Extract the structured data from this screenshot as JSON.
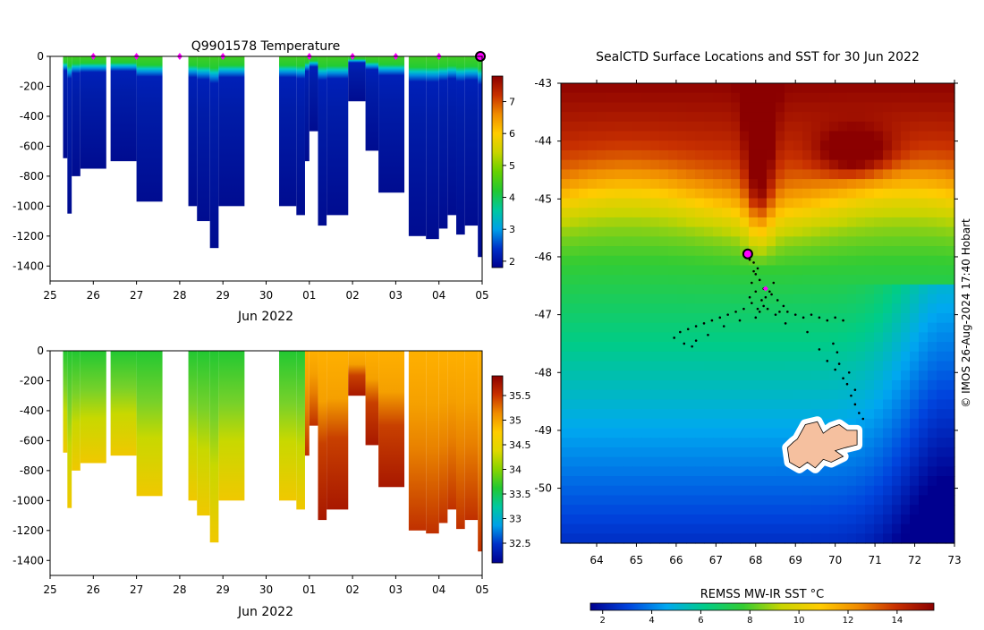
{
  "colors": {
    "temp_scale": [
      "#00008f",
      "#0033cc",
      "#00a8e8",
      "#00d060",
      "#33cc33",
      "#66d100"
    ],
    "sal_scale": [
      "#33cc33",
      "#7fd82a",
      "#d9e000",
      "#ffcc00",
      "#f5a300",
      "#d96b00",
      "#a81800"
    ],
    "sst_scale": [
      "#00008f",
      "#0044dd",
      "#00a8f0",
      "#00cc88",
      "#33cc33",
      "#c8d400",
      "#ffcc00",
      "#f08c00",
      "#c83000",
      "#8b0000"
    ],
    "marker": "#ff00ff",
    "track": "#000000",
    "land_fill": "#f5c09f"
  },
  "chart_data": [
    {
      "type": "heatmap",
      "title": "Q9901578  Temperature",
      "xlabel": "Jun 2022",
      "ylabel": "",
      "x_tick_labels": [
        "25",
        "26",
        "27",
        "28",
        "29",
        "30",
        "01",
        "02",
        "03",
        "04",
        "05"
      ],
      "y_tick_labels": [
        "0",
        "-200",
        "-400",
        "-600",
        "-800",
        "-1000",
        "-1200",
        "-1400"
      ],
      "xlim": [
        25,
        35
      ],
      "ylim": [
        -1500,
        0
      ],
      "marker_days": [
        26,
        27,
        28,
        29,
        31,
        32,
        33,
        34,
        35
      ],
      "colorbar": {
        "range": [
          1.8,
          7.8
        ],
        "tick_labels": [
          "2",
          "3",
          "4",
          "5",
          "6",
          "7"
        ],
        "tick_values": [
          2,
          3,
          4,
          5,
          6,
          7
        ]
      },
      "profiles": [
        {
          "start": 25.3,
          "end": 25.4,
          "max_depth": -680
        },
        {
          "start": 25.4,
          "end": 25.5,
          "max_depth": -1050
        },
        {
          "start": 25.5,
          "end": 25.7,
          "max_depth": -800
        },
        {
          "start": 25.7,
          "end": 26.3,
          "max_depth": -750
        },
        {
          "start": 26.4,
          "end": 27.0,
          "max_depth": -700
        },
        {
          "start": 27.0,
          "end": 27.6,
          "max_depth": -970
        },
        {
          "start": 28.2,
          "end": 28.4,
          "max_depth": -1000
        },
        {
          "start": 28.4,
          "end": 28.7,
          "max_depth": -1100
        },
        {
          "start": 28.7,
          "end": 28.9,
          "max_depth": -1280
        },
        {
          "start": 28.9,
          "end": 29.5,
          "max_depth": -1000
        },
        {
          "start": 30.3,
          "end": 30.7,
          "max_depth": -1000
        },
        {
          "start": 30.7,
          "end": 30.9,
          "max_depth": -1060
        },
        {
          "start": 30.9,
          "end": 31.0,
          "max_depth": -700
        },
        {
          "start": 31.2,
          "end": 31.4,
          "max_depth": -1130
        },
        {
          "start": 31.4,
          "end": 31.9,
          "max_depth": -1060
        },
        {
          "start": 32.3,
          "end": 32.6,
          "max_depth": -630
        },
        {
          "start": 32.6,
          "end": 33.2,
          "max_depth": -910
        },
        {
          "start": 33.3,
          "end": 33.7,
          "max_depth": -1200
        },
        {
          "start": 33.7,
          "end": 34.0,
          "max_depth": -1220
        },
        {
          "start": 34.0,
          "end": 34.2,
          "max_depth": -1150
        },
        {
          "start": 34.2,
          "end": 34.4,
          "max_depth": -1060
        },
        {
          "start": 34.4,
          "end": 34.6,
          "max_depth": -1190
        },
        {
          "start": 34.6,
          "end": 34.9,
          "max_depth": -1130
        },
        {
          "start": 34.9,
          "end": 35.0,
          "max_depth": -1340
        }
      ],
      "notches": [
        {
          "start": 31.0,
          "end": 31.2,
          "depth": -500
        },
        {
          "start": 31.9,
          "end": 32.3,
          "depth": -300
        }
      ]
    },
    {
      "type": "heatmap",
      "title": "",
      "xlabel": "Jun 2022",
      "ylabel": "",
      "x_tick_labels": [
        "25",
        "26",
        "27",
        "28",
        "29",
        "30",
        "01",
        "02",
        "03",
        "04",
        "05"
      ],
      "y_tick_labels": [
        "0",
        "-200",
        "-400",
        "-600",
        "-800",
        "-1000",
        "-1200",
        "-1400"
      ],
      "xlim": [
        25,
        35
      ],
      "ylim": [
        -1500,
        0
      ],
      "colorbar": {
        "range": [
          32.1,
          35.9
        ],
        "tick_labels": [
          "32.5",
          "33",
          "33.5",
          "34",
          "34.5",
          "35",
          "35.5"
        ],
        "tick_values": [
          32.5,
          33,
          33.5,
          34,
          34.5,
          35,
          35.5
        ]
      }
    },
    {
      "type": "heatmap",
      "title": "SealCTD Surface Locations and SST for 30 Jun 2022",
      "xlabel": "",
      "ylabel": "",
      "x_tick_labels": [
        "64",
        "65",
        "66",
        "67",
        "68",
        "69",
        "70",
        "71",
        "72",
        "73"
      ],
      "y_tick_labels": [
        "-43",
        "-44",
        "-45",
        "-46",
        "-47",
        "-48",
        "-49",
        "-50"
      ],
      "xlim": [
        63.1,
        73
      ],
      "ylim": [
        -50.95,
        -43
      ],
      "colorbar": {
        "label": "REMSS MW-IR SST °C",
        "range": [
          1.5,
          15.5
        ],
        "tick_labels": [
          "2",
          "4",
          "6",
          "8",
          "10",
          "12",
          "14"
        ],
        "tick_values": [
          2,
          4,
          6,
          8,
          10,
          12,
          14
        ]
      },
      "current_position": {
        "lon": 67.8,
        "lat": -45.95
      },
      "track_points": [
        [
          67.8,
          -45.95
        ],
        [
          67.85,
          -46.05
        ],
        [
          67.95,
          -46.1
        ],
        [
          68.05,
          -46.2
        ],
        [
          68.0,
          -46.3
        ],
        [
          67.9,
          -46.45
        ],
        [
          68.1,
          -46.4
        ],
        [
          68.2,
          -46.55
        ],
        [
          68.0,
          -46.6
        ],
        [
          67.85,
          -46.7
        ],
        [
          68.25,
          -46.7
        ],
        [
          68.4,
          -46.65
        ],
        [
          68.55,
          -46.75
        ],
        [
          68.7,
          -46.85
        ],
        [
          68.6,
          -46.95
        ],
        [
          68.3,
          -46.9
        ],
        [
          68.1,
          -46.95
        ],
        [
          67.9,
          -46.8
        ],
        [
          67.7,
          -46.9
        ],
        [
          67.5,
          -46.95
        ],
        [
          67.3,
          -47.0
        ],
        [
          67.1,
          -47.05
        ],
        [
          66.9,
          -47.1
        ],
        [
          66.7,
          -47.15
        ],
        [
          66.5,
          -47.2
        ],
        [
          66.3,
          -47.25
        ],
        [
          66.1,
          -47.3
        ],
        [
          65.95,
          -47.4
        ],
        [
          66.2,
          -47.5
        ],
        [
          66.5,
          -47.45
        ],
        [
          68.8,
          -46.95
        ],
        [
          69.0,
          -47.0
        ],
        [
          69.2,
          -47.05
        ],
        [
          69.4,
          -47.0
        ],
        [
          69.6,
          -47.05
        ],
        [
          69.8,
          -47.1
        ],
        [
          70.0,
          -47.05
        ],
        [
          70.2,
          -47.1
        ],
        [
          69.95,
          -47.5
        ],
        [
          70.05,
          -47.65
        ],
        [
          70.1,
          -47.85
        ],
        [
          70.0,
          -47.95
        ],
        [
          70.2,
          -48.1
        ],
        [
          70.3,
          -48.2
        ],
        [
          70.4,
          -48.4
        ],
        [
          70.5,
          -48.55
        ],
        [
          70.6,
          -48.7
        ],
        [
          70.7,
          -48.8
        ],
        [
          68.35,
          -46.6
        ],
        [
          68.45,
          -46.45
        ],
        [
          67.95,
          -46.25
        ],
        [
          68.15,
          -46.75
        ],
        [
          68.75,
          -47.15
        ],
        [
          68.5,
          -47.0
        ],
        [
          68.0,
          -47.05
        ],
        [
          67.6,
          -47.1
        ],
        [
          67.2,
          -47.2
        ],
        [
          66.8,
          -47.35
        ],
        [
          66.4,
          -47.55
        ],
        [
          69.3,
          -47.3
        ],
        [
          69.6,
          -47.6
        ],
        [
          69.8,
          -47.8
        ],
        [
          70.5,
          -48.3
        ],
        [
          70.35,
          -48.0
        ],
        [
          68.2,
          -46.85
        ],
        [
          68.05,
          -46.9
        ]
      ],
      "land_outline": [
        [
          69.05,
          -49.15
        ],
        [
          69.25,
          -48.9
        ],
        [
          69.55,
          -48.85
        ],
        [
          69.7,
          -49.05
        ],
        [
          69.9,
          -48.95
        ],
        [
          70.1,
          -48.9
        ],
        [
          70.3,
          -49.0
        ],
        [
          70.55,
          -49.0
        ],
        [
          70.55,
          -49.25
        ],
        [
          70.25,
          -49.3
        ],
        [
          70.0,
          -49.35
        ],
        [
          70.2,
          -49.45
        ],
        [
          69.9,
          -49.55
        ],
        [
          69.7,
          -49.5
        ],
        [
          69.5,
          -49.65
        ],
        [
          69.3,
          -49.55
        ],
        [
          69.1,
          -49.65
        ],
        [
          68.85,
          -49.55
        ],
        [
          68.8,
          -49.3
        ],
        [
          68.95,
          -49.2
        ]
      ]
    }
  ],
  "side_note": "© IMOS 26-Aug-2024 17:40 Hobart"
}
